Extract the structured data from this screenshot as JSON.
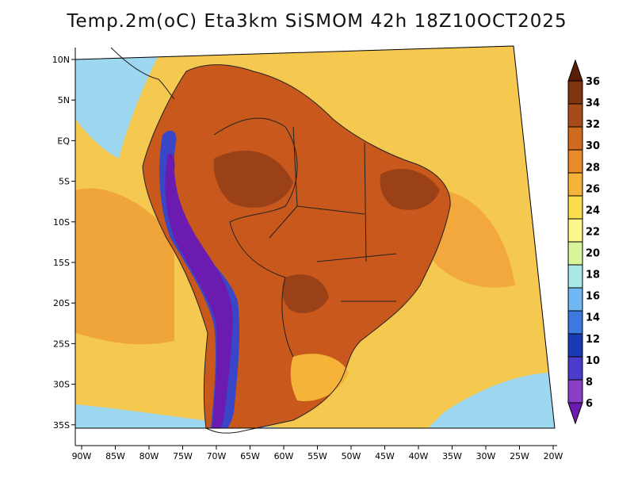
{
  "title": "Temp.2m(oC) Eta3km SiSMOM 42h 18Z10OCT2025",
  "lat_labels": [
    "10N",
    "5N",
    "EQ",
    "5S",
    "10S",
    "15S",
    "20S",
    "25S",
    "30S",
    "35S"
  ],
  "lon_labels": [
    "90W",
    "85W",
    "80W",
    "75W",
    "70W",
    "65W",
    "60W",
    "55W",
    "50W",
    "45W",
    "40W",
    "35W",
    "30W",
    "25W",
    "20W"
  ],
  "colorbar": {
    "levels": [
      "36",
      "34",
      "32",
      "30",
      "28",
      "26",
      "24",
      "22",
      "20",
      "18",
      "16",
      "14",
      "12",
      "10",
      "8",
      "6"
    ],
    "colors": [
      "#5a1d0a",
      "#7f3410",
      "#a94b19",
      "#d06a1e",
      "#ea8a28",
      "#f6b33a",
      "#fbdd50",
      "#fdf68a",
      "#d9f59a",
      "#a8e8e6",
      "#6fb8f4",
      "#3c79e0",
      "#1a3bb6",
      "#4b3dcc",
      "#8a3ec8",
      "#6b1bb0"
    ]
  },
  "colors": {
    "ocean": "#f5c850",
    "land_hot": "#c8581c",
    "land_very_hot": "#9a4118",
    "andes_cold": "#3a46c8",
    "coast_cool": "#9ed8f0",
    "boundary": "#222222"
  }
}
